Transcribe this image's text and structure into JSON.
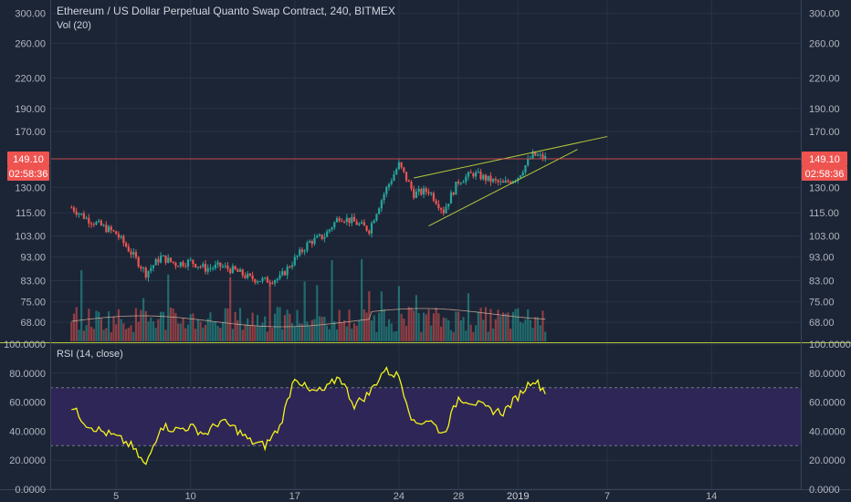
{
  "header": {
    "title": "Ethereum / US Dollar Perpetual Quanto Swap Contract, 240, BITMEX",
    "volume_label": "Vol (20)"
  },
  "price_pane": {
    "ticks": [
      "300.00",
      "260.00",
      "220.00",
      "190.00",
      "170.00",
      "130.00",
      "115.00",
      "103.00",
      "93.00",
      "83.00",
      "75.00",
      "68.00"
    ],
    "current_price": "149.10",
    "countdown": "02:58:36",
    "scale": "log"
  },
  "rsi_pane": {
    "title": "RSI (14, close)",
    "ticks": [
      "100.0000",
      "80.0000",
      "60.0000",
      "40.0000",
      "20.0000",
      "0.0000"
    ],
    "overbought": 70,
    "oversold": 30
  },
  "x_axis": {
    "ticks": [
      "5",
      "10",
      "17",
      "24",
      "28",
      "2019",
      "7",
      "14"
    ]
  },
  "colors": {
    "background": "#1b2536",
    "grid": "#283447",
    "up": "#26a69a",
    "down": "#ef5350",
    "rsi_line": "#f4f41c",
    "rsi_band": "#2e2656",
    "trendline": "#b6c73b",
    "price_line": "#ef5350",
    "volume_ma": "#e0b9a0"
  },
  "chart_data": {
    "type": "candlestick",
    "title": "Ethereum / US Dollar Perpetual Quanto Swap Contract, 240, BITMEX",
    "y_scale": "log",
    "ylim": [
      62,
      320
    ],
    "x_tick_labels": [
      "5",
      "10",
      "17",
      "24",
      "28",
      "2019",
      "7",
      "14"
    ],
    "close_series": [
      {
        "date": "Dec 2",
        "close": 118
      },
      {
        "date": "Dec 3",
        "close": 112
      },
      {
        "date": "Dec 4",
        "close": 108
      },
      {
        "date": "Dec 5",
        "close": 104
      },
      {
        "date": "Dec 6",
        "close": 95
      },
      {
        "date": "Dec 7",
        "close": 86
      },
      {
        "date": "Dec 8",
        "close": 93
      },
      {
        "date": "Dec 9",
        "close": 90
      },
      {
        "date": "Dec 10",
        "close": 91
      },
      {
        "date": "Dec 11",
        "close": 88
      },
      {
        "date": "Dec 12",
        "close": 89
      },
      {
        "date": "Dec 13",
        "close": 87
      },
      {
        "date": "Dec 14",
        "close": 84
      },
      {
        "date": "Dec 15",
        "close": 83
      },
      {
        "date": "Dec 16",
        "close": 84
      },
      {
        "date": "Dec 17",
        "close": 92
      },
      {
        "date": "Dec 18",
        "close": 100
      },
      {
        "date": "Dec 19",
        "close": 103
      },
      {
        "date": "Dec 20",
        "close": 113
      },
      {
        "date": "Dec 21",
        "close": 110
      },
      {
        "date": "Dec 22",
        "close": 106
      },
      {
        "date": "Dec 23",
        "close": 126
      },
      {
        "date": "Dec 24",
        "close": 145
      },
      {
        "date": "Dec 25",
        "close": 126
      },
      {
        "date": "Dec 26",
        "close": 128
      },
      {
        "date": "Dec 27",
        "close": 116
      },
      {
        "date": "Dec 28",
        "close": 134
      },
      {
        "date": "Dec 29",
        "close": 139
      },
      {
        "date": "Dec 30",
        "close": 135
      },
      {
        "date": "Dec 31",
        "close": 132
      },
      {
        "date": "Jan 1",
        "close": 137
      },
      {
        "date": "Jan 2",
        "close": 152
      },
      {
        "date": "Jan 3",
        "close": 149.1
      }
    ],
    "rsi_series": [
      {
        "date": "Dec 2",
        "rsi": 57
      },
      {
        "date": "Dec 3",
        "rsi": 45
      },
      {
        "date": "Dec 4",
        "rsi": 40
      },
      {
        "date": "Dec 5",
        "rsi": 36
      },
      {
        "date": "Dec 6",
        "rsi": 30
      },
      {
        "date": "Dec 7",
        "rsi": 16
      },
      {
        "date": "Dec 8",
        "rsi": 44
      },
      {
        "date": "Dec 9",
        "rsi": 41
      },
      {
        "date": "Dec 10",
        "rsi": 43
      },
      {
        "date": "Dec 11",
        "rsi": 38
      },
      {
        "date": "Dec 12",
        "rsi": 47
      },
      {
        "date": "Dec 13",
        "rsi": 42
      },
      {
        "date": "Dec 14",
        "rsi": 33
      },
      {
        "date": "Dec 15",
        "rsi": 30
      },
      {
        "date": "Dec 16",
        "rsi": 43
      },
      {
        "date": "Dec 17",
        "rsi": 78
      },
      {
        "date": "Dec 18",
        "rsi": 67
      },
      {
        "date": "Dec 19",
        "rsi": 68
      },
      {
        "date": "Dec 20",
        "rsi": 78
      },
      {
        "date": "Dec 21",
        "rsi": 58
      },
      {
        "date": "Dec 22",
        "rsi": 66
      },
      {
        "date": "Dec 23",
        "rsi": 82
      },
      {
        "date": "Dec 24",
        "rsi": 78
      },
      {
        "date": "Dec 25",
        "rsi": 45
      },
      {
        "date": "Dec 26",
        "rsi": 48
      },
      {
        "date": "Dec 27",
        "rsi": 38
      },
      {
        "date": "Dec 28",
        "rsi": 63
      },
      {
        "date": "Dec 29",
        "rsi": 60
      },
      {
        "date": "Dec 30",
        "rsi": 55
      },
      {
        "date": "Dec 31",
        "rsi": 53
      },
      {
        "date": "Jan 1",
        "rsi": 64
      },
      {
        "date": "Jan 2",
        "rsi": 76
      },
      {
        "date": "Jan 3",
        "rsi": 66
      }
    ],
    "trendlines": [
      {
        "name": "upper",
        "from": {
          "date": "Dec 25",
          "price": 136
        },
        "to": {
          "date": "Jan 7",
          "price": 166
        }
      },
      {
        "name": "lower",
        "from": {
          "date": "Dec 26",
          "price": 108
        },
        "to": {
          "date": "Jan 5",
          "price": 156
        }
      }
    ]
  }
}
